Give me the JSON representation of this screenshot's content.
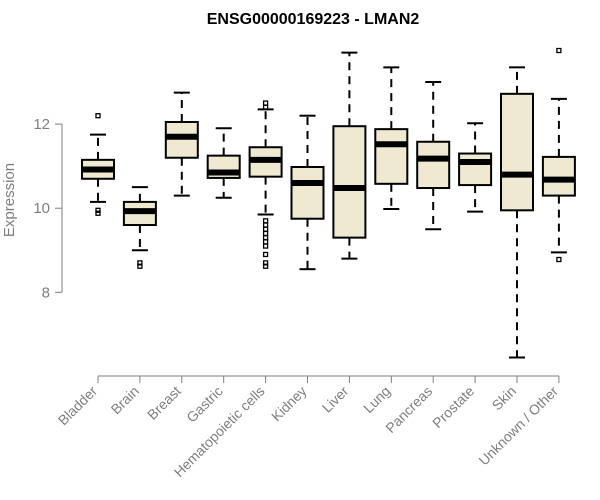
{
  "chart_data": {
    "type": "box",
    "title": "ENSG00000169223 - LMAN2",
    "xlabel": "",
    "ylabel": "Expression",
    "ylim": [
      6.2,
      14.0
    ],
    "yticks": [
      8,
      10,
      12
    ],
    "categories": [
      "Bladder",
      "Brain",
      "Breast",
      "Gastric",
      "Hematopoietic cells",
      "Kidney",
      "Liver",
      "Lung",
      "Pancreas",
      "Prostate",
      "Skin",
      "Unknown / Other"
    ],
    "series": [
      {
        "name": "Bladder",
        "whisker_low": 10.15,
        "q1": 10.7,
        "median": 10.92,
        "q3": 11.15,
        "whisker_high": 11.75,
        "outliers": [
          12.2,
          9.95,
          9.88
        ]
      },
      {
        "name": "Brain",
        "whisker_low": 9.0,
        "q1": 9.6,
        "median": 9.93,
        "q3": 10.15,
        "whisker_high": 10.5,
        "outliers": [
          8.7,
          8.62
        ]
      },
      {
        "name": "Breast",
        "whisker_low": 10.3,
        "q1": 11.2,
        "median": 11.7,
        "q3": 12.05,
        "whisker_high": 12.75,
        "outliers": []
      },
      {
        "name": "Gastric",
        "whisker_low": 10.25,
        "q1": 10.72,
        "median": 10.85,
        "q3": 11.25,
        "whisker_high": 11.9,
        "outliers": []
      },
      {
        "name": "Hematopoietic cells",
        "whisker_low": 9.85,
        "q1": 10.75,
        "median": 11.15,
        "q3": 11.45,
        "whisker_high": 12.35,
        "outliers": [
          12.5,
          12.4,
          9.7,
          9.6,
          9.5,
          9.4,
          9.3,
          9.2,
          9.1,
          8.9,
          8.7,
          8.62
        ]
      },
      {
        "name": "Kidney",
        "whisker_low": 8.55,
        "q1": 9.75,
        "median": 10.6,
        "q3": 10.98,
        "whisker_high": 12.2,
        "outliers": []
      },
      {
        "name": "Liver",
        "whisker_low": 8.8,
        "q1": 9.3,
        "median": 10.48,
        "q3": 11.95,
        "whisker_high": 13.7,
        "outliers": []
      },
      {
        "name": "Lung",
        "whisker_low": 9.98,
        "q1": 10.58,
        "median": 11.52,
        "q3": 11.88,
        "whisker_high": 13.35,
        "outliers": []
      },
      {
        "name": "Pancreas",
        "whisker_low": 9.5,
        "q1": 10.48,
        "median": 11.18,
        "q3": 11.58,
        "whisker_high": 13.0,
        "outliers": []
      },
      {
        "name": "Prostate",
        "whisker_low": 9.92,
        "q1": 10.55,
        "median": 11.1,
        "q3": 11.3,
        "whisker_high": 12.02,
        "outliers": []
      },
      {
        "name": "Skin",
        "whisker_low": 6.45,
        "q1": 9.95,
        "median": 10.8,
        "q3": 12.72,
        "whisker_high": 13.35,
        "outliers": []
      },
      {
        "name": "Unknown / Other",
        "whisker_low": 8.95,
        "q1": 10.3,
        "median": 10.68,
        "q3": 11.22,
        "whisker_high": 12.6,
        "outliers": [
          13.75,
          8.78
        ]
      }
    ]
  }
}
